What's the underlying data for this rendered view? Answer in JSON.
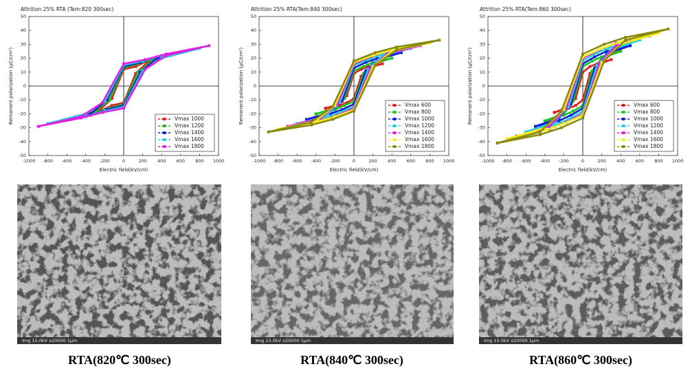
{
  "chart_data": [
    {
      "type": "line",
      "title": "Attrition 25% RTA (Tem:820 300sec)",
      "x_label": "Electric field(kV/cm)",
      "y_label": "Remanent polarization (μC/cm²)",
      "xlim": [
        -1000,
        1000
      ],
      "xticks": [
        -1000,
        -800,
        -600,
        -400,
        -200,
        0,
        200,
        400,
        600,
        800,
        1000
      ],
      "ylim": [
        -50,
        50
      ],
      "yticks": [
        -50,
        -40,
        -30,
        -20,
        -10,
        0,
        10,
        20,
        30,
        40,
        50
      ],
      "legend": "lower right",
      "series": [
        {
          "name": "Vmax 1000",
          "color": "#e02020",
          "x": [
            -500,
            -250,
            -125,
            0,
            125,
            250,
            500,
            250,
            125,
            0,
            -125,
            -250,
            -500
          ],
          "values": [
            -22,
            -18,
            -14,
            -12,
            9,
            17,
            22,
            18,
            14,
            12,
            -9,
            -17,
            -22
          ]
        },
        {
          "name": "Vmax 1200",
          "color": "#20c020",
          "x": [
            -600,
            -300,
            -150,
            0,
            150,
            300,
            600,
            300,
            150,
            0,
            -150,
            -300,
            -600
          ],
          "values": [
            -24,
            -19,
            -16,
            -13,
            10,
            18,
            24,
            19,
            16,
            13,
            -10,
            -18,
            -24
          ]
        },
        {
          "name": "Vmax 1400",
          "color": "#1020d0",
          "x": [
            -700,
            -350,
            -175,
            0,
            175,
            350,
            700,
            350,
            175,
            0,
            -175,
            -350,
            -700
          ],
          "values": [
            -26,
            -21,
            -17,
            -14,
            10,
            20,
            26,
            21,
            17,
            14,
            -10,
            -20,
            -26
          ]
        },
        {
          "name": "Vmax 1600",
          "color": "#20d0e0",
          "x": [
            -800,
            -400,
            -200,
            0,
            200,
            400,
            800,
            400,
            200,
            0,
            -200,
            -400,
            -800
          ],
          "values": [
            -27,
            -22,
            -18,
            -15,
            11,
            20,
            27,
            22,
            18,
            15,
            -11,
            -20,
            -27
          ]
        },
        {
          "name": "Vmax 1800",
          "color": "#e020e0",
          "x": [
            -900,
            -450,
            -225,
            0,
            225,
            450,
            900,
            450,
            225,
            0,
            -225,
            -450,
            -900
          ],
          "values": [
            -29,
            -23,
            -19,
            -16,
            12,
            22,
            29,
            23,
            19,
            16,
            -12,
            -22,
            -29
          ]
        }
      ]
    },
    {
      "type": "line",
      "title": "Attrition 25% RTA(Tem:840 300sec)",
      "x_label": "Electric field(kV/cm)",
      "y_label": "Remanent polarization (μC/cm²)",
      "xlim": [
        -1000,
        1000
      ],
      "xticks": [
        -1000,
        -800,
        -600,
        -400,
        -200,
        0,
        200,
        400,
        600,
        800,
        1000
      ],
      "ylim": [
        -50,
        50
      ],
      "yticks": [
        -50,
        -40,
        -30,
        -20,
        -10,
        0,
        10,
        20,
        30,
        40,
        50
      ],
      "legend": "lower right",
      "series": [
        {
          "name": "Vmax 600",
          "color": "#e02020",
          "x": [
            -300,
            -150,
            -75,
            0,
            75,
            150,
            300,
            150,
            75,
            0,
            -75,
            -150,
            -300
          ],
          "values": [
            -16,
            -14,
            -12,
            -9,
            7,
            13,
            16,
            14,
            12,
            9,
            -7,
            -13,
            -16
          ]
        },
        {
          "name": "Vmax 800",
          "color": "#20c020",
          "x": [
            -400,
            -200,
            -100,
            0,
            100,
            200,
            400,
            200,
            100,
            0,
            -100,
            -200,
            -400
          ],
          "values": [
            -20,
            -17,
            -14,
            -11,
            9,
            16,
            20,
            17,
            14,
            11,
            -9,
            -16,
            -20
          ]
        },
        {
          "name": "Vmax 1000",
          "color": "#1020d0",
          "x": [
            -500,
            -250,
            -125,
            0,
            125,
            250,
            500,
            250,
            125,
            0,
            -125,
            -250,
            -500
          ],
          "values": [
            -24,
            -20,
            -17,
            -13,
            11,
            19,
            24,
            20,
            17,
            13,
            -11,
            -19,
            -24
          ]
        },
        {
          "name": "Vmax 1200",
          "color": "#20d0e0",
          "x": [
            -600,
            -300,
            -150,
            0,
            150,
            300,
            600,
            300,
            150,
            0,
            -150,
            -300,
            -600
          ],
          "values": [
            -27,
            -23,
            -19,
            -15,
            12,
            22,
            27,
            23,
            19,
            15,
            -12,
            -22,
            -27
          ]
        },
        {
          "name": "Vmax 1400",
          "color": "#e020e0",
          "x": [
            -700,
            -350,
            -175,
            0,
            175,
            350,
            700,
            350,
            175,
            0,
            -175,
            -350,
            -700
          ],
          "values": [
            -29,
            -25,
            -21,
            -16,
            13,
            23,
            29,
            25,
            21,
            16,
            -13,
            -23,
            -29
          ]
        },
        {
          "name": "Vmax 1600",
          "color": "#f0f020",
          "x": [
            -800,
            -400,
            -200,
            0,
            200,
            400,
            800,
            400,
            200,
            0,
            -200,
            -400,
            -800
          ],
          "values": [
            -31,
            -26,
            -22,
            -17,
            14,
            25,
            31,
            26,
            22,
            17,
            -14,
            -25,
            -31
          ]
        },
        {
          "name": "Vmax 1800",
          "color": "#8a8a10",
          "x": [
            -900,
            -450,
            -225,
            0,
            225,
            450,
            900,
            450,
            225,
            0,
            -225,
            -450,
            -900
          ],
          "values": [
            -33,
            -28,
            -24,
            -18,
            15,
            26,
            33,
            28,
            24,
            18,
            -15,
            -26,
            -33
          ]
        }
      ]
    },
    {
      "type": "line",
      "title": "Attrition 25% RTA(Tem:860 300sec)",
      "x_label": "Electric field(kV/cm)",
      "y_label": "Remanent polarization (μC/cm²)",
      "xlim": [
        -1000,
        1000
      ],
      "xticks": [
        -1000,
        -800,
        -600,
        -400,
        -200,
        0,
        200,
        400,
        600,
        800,
        1000
      ],
      "ylim": [
        -50,
        50
      ],
      "yticks": [
        -50,
        -40,
        -30,
        -20,
        -10,
        0,
        10,
        20,
        30,
        40,
        50
      ],
      "legend": "lower right",
      "series": [
        {
          "name": "Vmax 600",
          "color": "#e02020",
          "x": [
            -300,
            -150,
            -75,
            0,
            75,
            150,
            300,
            150,
            75,
            0,
            -75,
            -150,
            -300
          ],
          "values": [
            -19,
            -16,
            -14,
            -10,
            9,
            15,
            19,
            16,
            14,
            10,
            -9,
            -15,
            -19
          ]
        },
        {
          "name": "Vmax 800",
          "color": "#20c020",
          "x": [
            -400,
            -200,
            -100,
            0,
            100,
            200,
            400,
            200,
            100,
            0,
            -100,
            -200,
            -400
          ],
          "values": [
            -25,
            -21,
            -18,
            -14,
            11,
            20,
            25,
            21,
            18,
            14,
            -11,
            -20,
            -25
          ]
        },
        {
          "name": "Vmax 1000",
          "color": "#1020d0",
          "x": [
            -500,
            -250,
            -125,
            0,
            125,
            250,
            500,
            250,
            125,
            0,
            -125,
            -250,
            -500
          ],
          "values": [
            -29,
            -25,
            -21,
            -16,
            13,
            23,
            29,
            25,
            21,
            16,
            -13,
            -23,
            -29
          ]
        },
        {
          "name": "Vmax 1200",
          "color": "#20d0e0",
          "x": [
            -600,
            -300,
            -150,
            0,
            150,
            300,
            600,
            300,
            150,
            0,
            -150,
            -300,
            -600
          ],
          "values": [
            -33,
            -28,
            -24,
            -18,
            15,
            26,
            33,
            28,
            24,
            18,
            -15,
            -26,
            -33
          ]
        },
        {
          "name": "Vmax 1400",
          "color": "#e020e0",
          "x": [
            -700,
            -350,
            -175,
            0,
            175,
            350,
            700,
            350,
            175,
            0,
            -175,
            -350,
            -700
          ],
          "values": [
            -36,
            -31,
            -26,
            -20,
            16,
            29,
            36,
            31,
            26,
            20,
            -16,
            -29,
            -36
          ]
        },
        {
          "name": "Vmax 1600",
          "color": "#f0f020",
          "x": [
            -800,
            -400,
            -200,
            0,
            200,
            400,
            800,
            400,
            200,
            0,
            -200,
            -400,
            -800
          ],
          "values": [
            -38,
            -32,
            -27,
            -21,
            17,
            30,
            38,
            32,
            27,
            21,
            -17,
            -30,
            -38
          ]
        },
        {
          "name": "Vmax 1800",
          "color": "#8a8a10",
          "x": [
            -900,
            -450,
            -225,
            0,
            225,
            450,
            900,
            450,
            225,
            0,
            -225,
            -450,
            -900
          ],
          "values": [
            -41,
            -35,
            -30,
            -23,
            18,
            33,
            41,
            35,
            30,
            23,
            -18,
            -33,
            -41
          ]
        }
      ]
    }
  ],
  "sem": [
    {
      "label": "Img 15.0kV x20000 1μm"
    },
    {
      "label": "Img 15.0kV x20000 1μm"
    },
    {
      "label": "Img 15.0kV x20000 1μm"
    }
  ],
  "captions": [
    "RTA(820℃ 300sec)",
    "RTA(840℃ 300sec)",
    "RTA(860℃ 300sec)"
  ]
}
